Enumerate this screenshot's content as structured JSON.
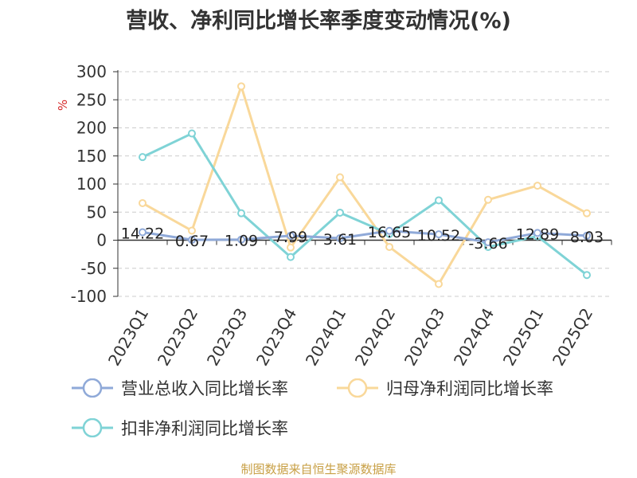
{
  "chart_data": {
    "type": "line",
    "title": "营收、净利同比增长率季度变动情况(%)",
    "ylabel": "%",
    "xlabel": "",
    "categories": [
      "2023Q1",
      "2023Q2",
      "2023Q3",
      "2023Q4",
      "2024Q1",
      "2024Q2",
      "2024Q3",
      "2024Q4",
      "2025Q1",
      "2025Q2"
    ],
    "ylim": [
      -100,
      300
    ],
    "yticks": [
      300,
      250,
      200,
      150,
      100,
      50,
      0,
      -50,
      -100
    ],
    "grid": true,
    "legend_position": "bottom",
    "series": [
      {
        "name": "营业总收入同比增长率",
        "color": "#8fa9d8",
        "values": [
          14.22,
          0.67,
          1.09,
          7.99,
          3.61,
          16.65,
          10.52,
          -3.66,
          12.89,
          8.03
        ],
        "labels": [
          "14.22",
          "0.67",
          "1.09",
          "7.99",
          "3.61",
          "16.65",
          "10.52",
          "-3.66",
          "12.89",
          "8.03"
        ]
      },
      {
        "name": "归母净利润同比增长率",
        "color": "#f9d89a",
        "values": [
          66,
          17,
          274,
          -13,
          112,
          -12,
          -78,
          72,
          97,
          48
        ]
      },
      {
        "name": "扣非净利润同比增长率",
        "color": "#7fd3d6",
        "values": [
          148,
          190,
          48,
          -30,
          49,
          11,
          71,
          -12,
          7,
          -62
        ]
      }
    ]
  },
  "source": "制图数据来自恒生聚源数据库"
}
